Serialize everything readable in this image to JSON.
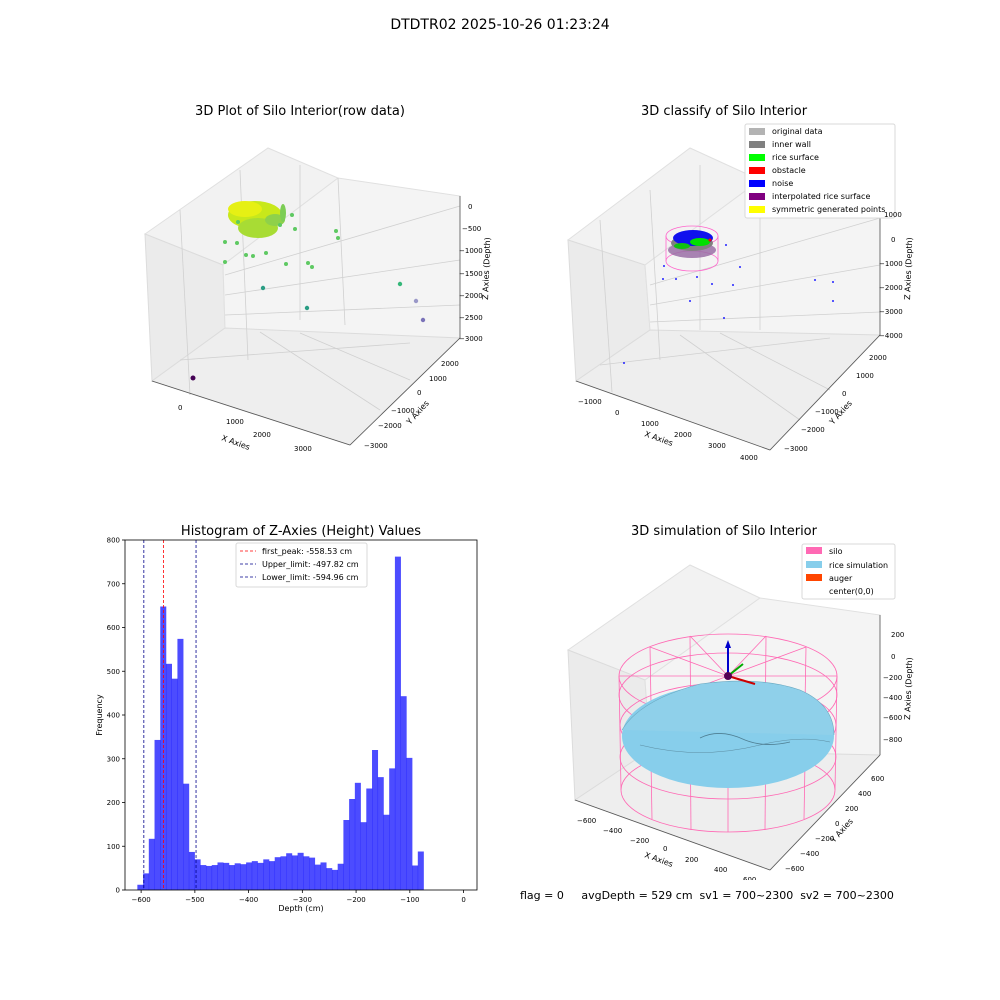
{
  "suptitle": "DTDTR02 2025-10-26 01:23:24",
  "footer": "flag = 0     avgDepth = 529 cm  sv1 = 700~2300  sv2 = 700~2300",
  "panels": {
    "raw": {
      "title": "3D Plot of Silo Interior(row data)",
      "xlabel": "X Axies",
      "ylabel": "Y Axies",
      "zlabel": "Z Axies (Depth)",
      "xticks": [
        "0",
        "1000",
        "2000",
        "3000"
      ],
      "yticks": [
        "2000",
        "1000",
        "0",
        "−1000",
        "−2000",
        "−3000"
      ],
      "zticks": [
        "0",
        "−500",
        "−1000",
        "−1500",
        "−2000",
        "−2500",
        "−3000"
      ]
    },
    "classify": {
      "title": "3D classify of Silo Interior",
      "xlabel": "X Axies",
      "ylabel": "Y Axies",
      "zlabel": "Z Axies (Depth)",
      "xticks": [
        "−1000",
        "0",
        "1000",
        "2000",
        "3000",
        "4000"
      ],
      "yticks": [
        "2000",
        "1000",
        "0",
        "−1000",
        "−2000",
        "−3000"
      ],
      "zticks": [
        "1000",
        "0",
        "−1000",
        "−2000",
        "−3000",
        "−4000"
      ],
      "legend": [
        {
          "label": "original data",
          "color": "#b3b3b3"
        },
        {
          "label": "inner wall",
          "color": "#808080"
        },
        {
          "label": "rice surface",
          "color": "#00ff00"
        },
        {
          "label": "obstacle",
          "color": "#ff0000"
        },
        {
          "label": "noise",
          "color": "#0000ff"
        },
        {
          "label": "interpolated rice surface",
          "color": "#800080"
        },
        {
          "label": "symmetric generated points",
          "color": "#ffff00"
        }
      ]
    },
    "simulation": {
      "title": "3D simulation of Silo Interior",
      "xlabel": "X Axies",
      "ylabel": "Y Axies",
      "zlabel": "Z Axies (Depth)",
      "xticks": [
        "−600",
        "−400",
        "−200",
        "0",
        "200",
        "400",
        "600"
      ],
      "yticks": [
        "600",
        "400",
        "200",
        "0",
        "−200",
        "−400",
        "−600"
      ],
      "zticks": [
        "200",
        "0",
        "−200",
        "−400",
        "−600",
        "−800"
      ],
      "legend": [
        {
          "label": "silo",
          "color": "#ff69b4"
        },
        {
          "label": "rice simulation",
          "color": "#87ceeb"
        },
        {
          "label": "auger",
          "color": "#ff4500"
        },
        {
          "label": "center(0,0)",
          "color": "#ffffff"
        }
      ]
    }
  },
  "chart_data": {
    "type": "bar",
    "title": "Histogram of Z-Axies (Height) Values",
    "xlabel": "Depth (cm)",
    "ylabel": "Frequency",
    "xlim": [
      -630,
      25
    ],
    "ylim": [
      0,
      800
    ],
    "xticks": [
      -600,
      -500,
      -400,
      -300,
      -200,
      -100,
      0
    ],
    "xtick_labels": [
      "−600",
      "−500",
      "−400",
      "−300",
      "−200",
      "−100",
      "0"
    ],
    "yticks": [
      0,
      100,
      200,
      300,
      400,
      500,
      600,
      700,
      800
    ],
    "bar_color": "#0000ff",
    "bin_start": -607,
    "bin_width": 10.65,
    "values": [
      12,
      38,
      117,
      343,
      648,
      517,
      483,
      574,
      243,
      87,
      70,
      57,
      55,
      57,
      63,
      62,
      57,
      61,
      59,
      63,
      66,
      62,
      70,
      66,
      75,
      77,
      84,
      79,
      85,
      77,
      74,
      58,
      63,
      50,
      46,
      60,
      160,
      208,
      245,
      155,
      232,
      320,
      258,
      172,
      278,
      762,
      443,
      302,
      56,
      88
    ],
    "lines": [
      {
        "label": "first_peak: -558.53 cm",
        "x": -558.53,
        "color": "#ff0000"
      },
      {
        "label": "Upper_limit: -497.82 cm",
        "x": -497.82,
        "color": "#00008b"
      },
      {
        "label": "Lower_limit: -594.96 cm",
        "x": -594.96,
        "color": "#00008b"
      }
    ],
    "legend_position": "upper center"
  }
}
